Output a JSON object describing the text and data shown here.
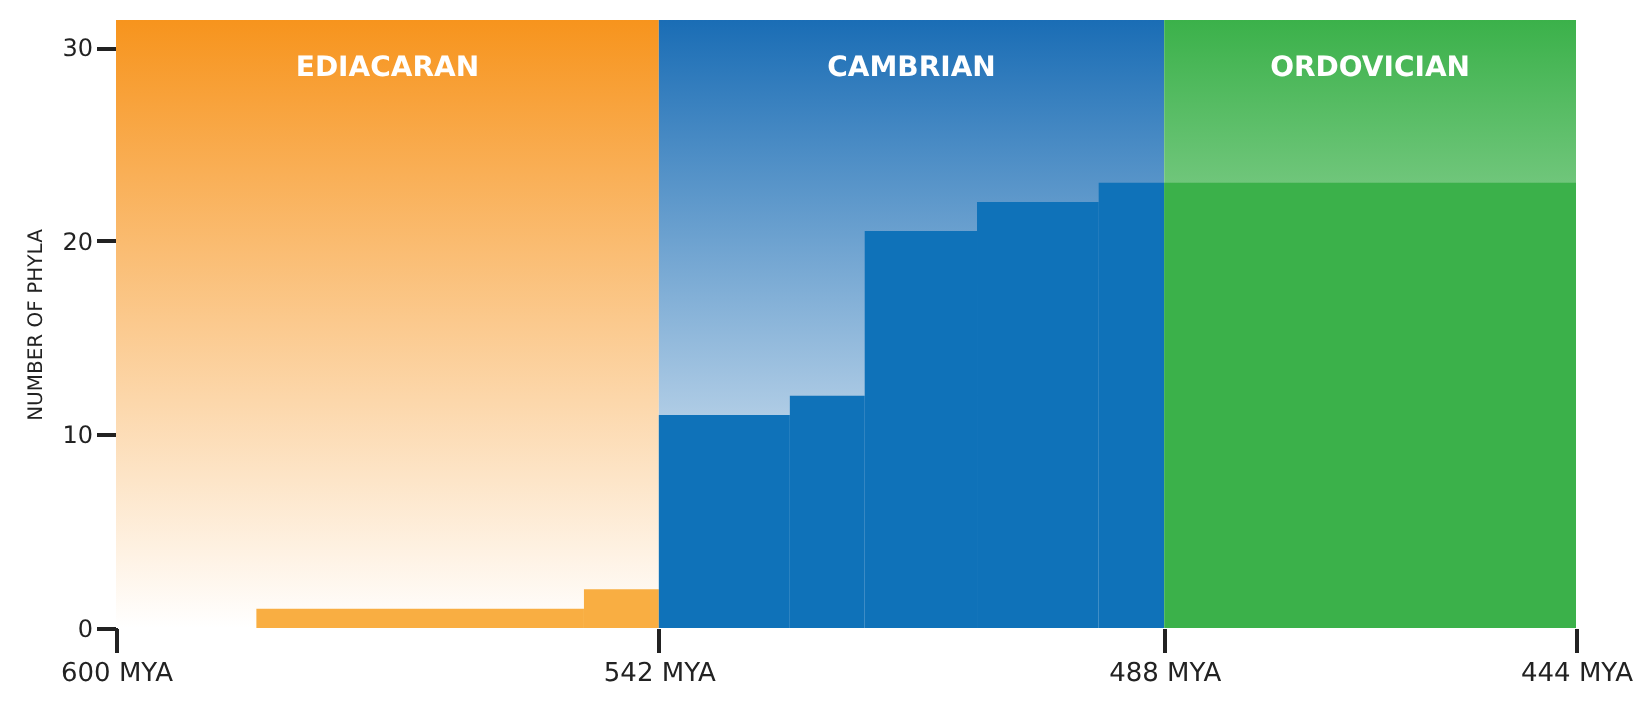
{
  "chart_data": {
    "type": "area",
    "ylabel": "NUMBER OF PHYLA",
    "xlim": [
      600,
      444
    ],
    "xticks": [
      {
        "value": 600,
        "label": "600 MYA"
      },
      {
        "value": 542,
        "label": "542 MYA"
      },
      {
        "value": 488,
        "label": "488 MYA"
      },
      {
        "value": 444,
        "label": "444 MYA"
      }
    ],
    "ylim": [
      0,
      31.4
    ],
    "yticks": [
      0,
      10,
      20,
      30
    ],
    "grid": false,
    "bands": [
      {
        "axis": "x",
        "from": 600,
        "to": 542,
        "label": "EDIACARAN",
        "color": "#f7941d"
      },
      {
        "axis": "x",
        "from": 542,
        "to": 488,
        "label": "CAMBRIAN",
        "color": "#1a6db5"
      },
      {
        "axis": "x",
        "from": 488,
        "to": 444,
        "label": "ORDOVICIAN",
        "color": "#3bb14a"
      }
    ],
    "series": [
      {
        "color": "#f9ae42",
        "x": [
          585,
          550,
          542
        ],
        "values": [
          1,
          2,
          2
        ]
      },
      {
        "color": "#0f72b9",
        "x": [
          542,
          528,
          520,
          508,
          495,
          488
        ],
        "values": [
          11,
          12,
          20.5,
          22,
          23,
          23
        ]
      },
      {
        "color": "#3bb14a",
        "x": [
          488,
          444
        ],
        "values": [
          23,
          23
        ]
      }
    ]
  }
}
